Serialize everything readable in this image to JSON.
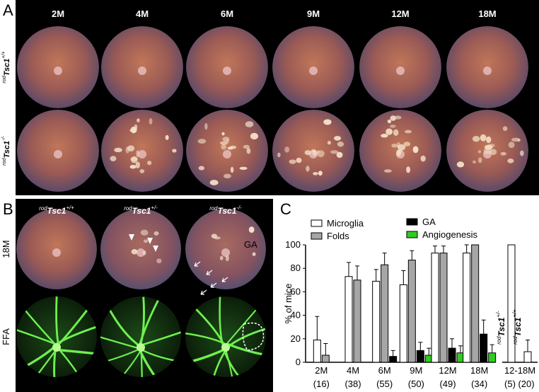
{
  "panel_a": {
    "letter": "A",
    "columns": [
      "2M",
      "4M",
      "6M",
      "9M",
      "12M",
      "18M"
    ],
    "rows": [
      {
        "prefix": "rod",
        "gene": "Tsc1",
        "sup": "+/+"
      },
      {
        "prefix": "rod",
        "gene": "Tsc1",
        "sup": "-/-"
      }
    ]
  },
  "panel_b": {
    "letter": "B",
    "columns": [
      {
        "prefix": "rod",
        "gene": "Tsc1",
        "sup": "+/+"
      },
      {
        "prefix": "rod",
        "gene": "Tsc1",
        "sup": "+/-"
      },
      {
        "prefix": "rod",
        "gene": "Tsc1",
        "sup": "-/-"
      }
    ],
    "rows": [
      "18M",
      "FFA"
    ],
    "annotation": "GA"
  },
  "chart_data": [
    {
      "type": "bar",
      "letter": "C",
      "ylabel": "% of mice",
      "categories": [
        "2M",
        "4M",
        "6M",
        "9M",
        "12M",
        "18M"
      ],
      "counts": [
        "(16)",
        "(38)",
        "(55)",
        "(50)",
        "(49)",
        "(34)"
      ],
      "series": [
        {
          "name": "Microglia",
          "color": "#ffffff",
          "values": [
            19,
            73,
            69,
            66,
            93,
            93
          ],
          "errors": [
            20,
            12,
            10,
            12,
            6,
            7
          ]
        },
        {
          "name": "Folds",
          "color": "#a6a6a6",
          "values": [
            6,
            70,
            83,
            87,
            93,
            100
          ],
          "errors": [
            10,
            12,
            10,
            8,
            6,
            null
          ]
        },
        {
          "name": "GA",
          "color": "#000000",
          "values": [
            null,
            null,
            5,
            10,
            12,
            24
          ],
          "errors": [
            null,
            null,
            5,
            7,
            8,
            12
          ]
        },
        {
          "name": "Angiogenesis",
          "color": "#2ecc1f",
          "values": [
            null,
            null,
            null,
            6,
            8,
            8
          ],
          "errors": [
            null,
            null,
            null,
            6,
            6,
            7
          ]
        }
      ],
      "ylim": [
        0,
        100
      ],
      "yticks": [
        0,
        20,
        40,
        60,
        80,
        100
      ]
    },
    {
      "type": "bar",
      "xlabel": "12-18M",
      "categories": [
        "Tsc1",
        "Tsc1"
      ],
      "category_prefix": [
        "rod",
        "rod"
      ],
      "category_sup": [
        "+/-",
        "+/+"
      ],
      "counts": [
        "(5)",
        "(20)"
      ],
      "color": "#ffffff",
      "values": [
        100,
        9
      ],
      "errors": [
        null,
        10
      ],
      "ylim": [
        0,
        100
      ]
    }
  ]
}
